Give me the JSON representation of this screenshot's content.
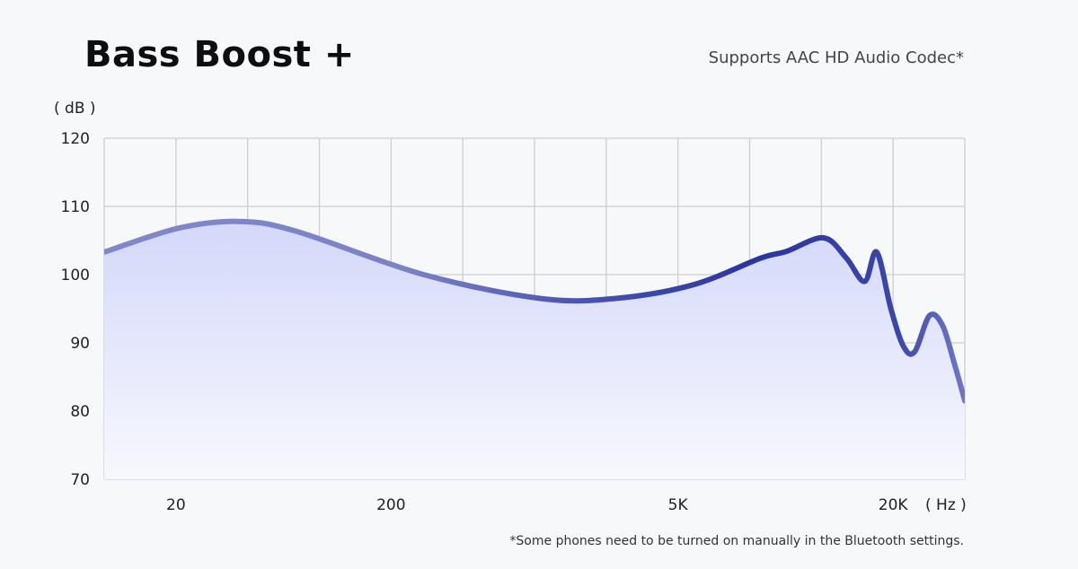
{
  "header": {
    "title": "Bass Boost +",
    "subtitle": "Supports AAC HD Audio Codec*"
  },
  "footnote": "*Some phones need to be turned on manually in the Bluetooth settings.",
  "colors": {
    "curve_left": "#8088cc",
    "curve_right": "#2e3aa0",
    "fill": "#d8dcfb",
    "grid": "#cdcdd4"
  },
  "chart_data": {
    "type": "area",
    "title": "Bass Boost +",
    "ylabel": "( dB )",
    "xlabel": "( Hz )",
    "x_scale": "log",
    "grid": true,
    "ylim": [
      70,
      120
    ],
    "yticks": [
      70,
      80,
      90,
      100,
      110,
      120
    ],
    "xtick_labels": [
      "20",
      "200",
      "5K",
      "20K"
    ],
    "series": [
      {
        "x": [
          10,
          20,
          35,
          60,
          200,
          600,
          1200,
          2500,
          4700,
          6000,
          8500,
          10500,
          12500,
          14000,
          16000,
          18000,
          20000,
          23000,
          26000,
          29000,
          32000
        ],
        "values": [
          103.3,
          106.8,
          107.8,
          106.4,
          100.0,
          96.5,
          96.5,
          98.5,
          102.4,
          103.4,
          105.4,
          102.5,
          99.0,
          103.3,
          95.0,
          89.5,
          88.7,
          94.0,
          92.5,
          87.0,
          81.5
        ]
      }
    ]
  }
}
